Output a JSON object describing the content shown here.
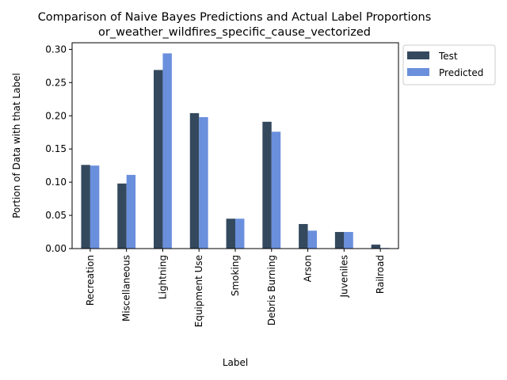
{
  "chart_data": {
    "type": "bar",
    "title": "Comparison of Naive Bayes Predictions and Actual Label Proportions",
    "subtitle": "or_weather_wildfires_specific_cause_vectorized",
    "xlabel": "Label",
    "ylabel": "Portion of Data with that Label",
    "categories": [
      "Recreation",
      "Miscellaneous",
      "Lightning",
      "Equipment Use",
      "Smoking",
      "Debris Burning",
      "Arson",
      "Juveniles",
      "Railroad"
    ],
    "series": [
      {
        "name": "Test",
        "color": "#34495e",
        "values": [
          0.126,
          0.098,
          0.269,
          0.204,
          0.045,
          0.191,
          0.037,
          0.025,
          0.006
        ]
      },
      {
        "name": "Predicted",
        "color": "#6a8fdc",
        "values": [
          0.125,
          0.111,
          0.294,
          0.198,
          0.045,
          0.176,
          0.027,
          0.025,
          0.001
        ]
      }
    ],
    "ylim": [
      0,
      0.31
    ],
    "yticks": [
      "0.00",
      "0.05",
      "0.10",
      "0.15",
      "0.20",
      "0.25",
      "0.30"
    ],
    "grid": false,
    "legend_position": "upper-right-outside"
  }
}
